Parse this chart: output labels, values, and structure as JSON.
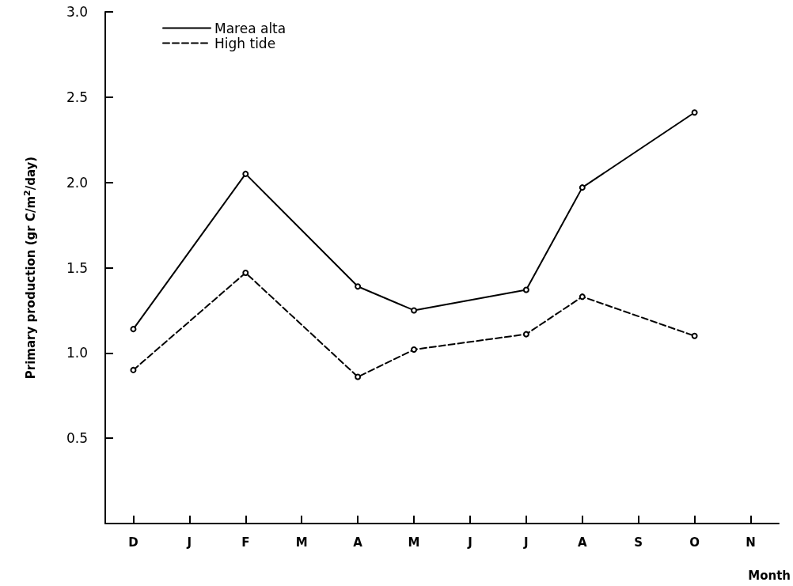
{
  "chart_data": {
    "type": "line",
    "xlabel": "Month",
    "ylabel": "Primary production (gr C/m$^{2}$/day)",
    "categories": [
      "D",
      "J",
      "F",
      "M",
      "A",
      "M",
      "J",
      "J",
      "A",
      "S",
      "O",
      "N"
    ],
    "series": [
      {
        "name": "Marea alta",
        "color": "#000000",
        "line_style": "solid",
        "values": [
          1.14,
          null,
          2.05,
          null,
          1.39,
          1.25,
          null,
          1.37,
          1.97,
          null,
          2.41,
          null
        ]
      },
      {
        "name": "High tide",
        "color": "#000000",
        "line_style": "dashed",
        "values": [
          0.9,
          null,
          1.47,
          null,
          0.86,
          1.02,
          null,
          1.11,
          1.33,
          null,
          1.1,
          null
        ]
      }
    ],
    "ylim": [
      0,
      3
    ],
    "yticks": [
      0.5,
      {
        "value": 1,
        "label": "1.0"
      },
      1.5,
      {
        "value": 2,
        "label": "2.0"
      },
      2.5,
      {
        "value": 3,
        "label": "3.0"
      }
    ],
    "marker": "circle",
    "grid": false,
    "legend": "top left"
  }
}
